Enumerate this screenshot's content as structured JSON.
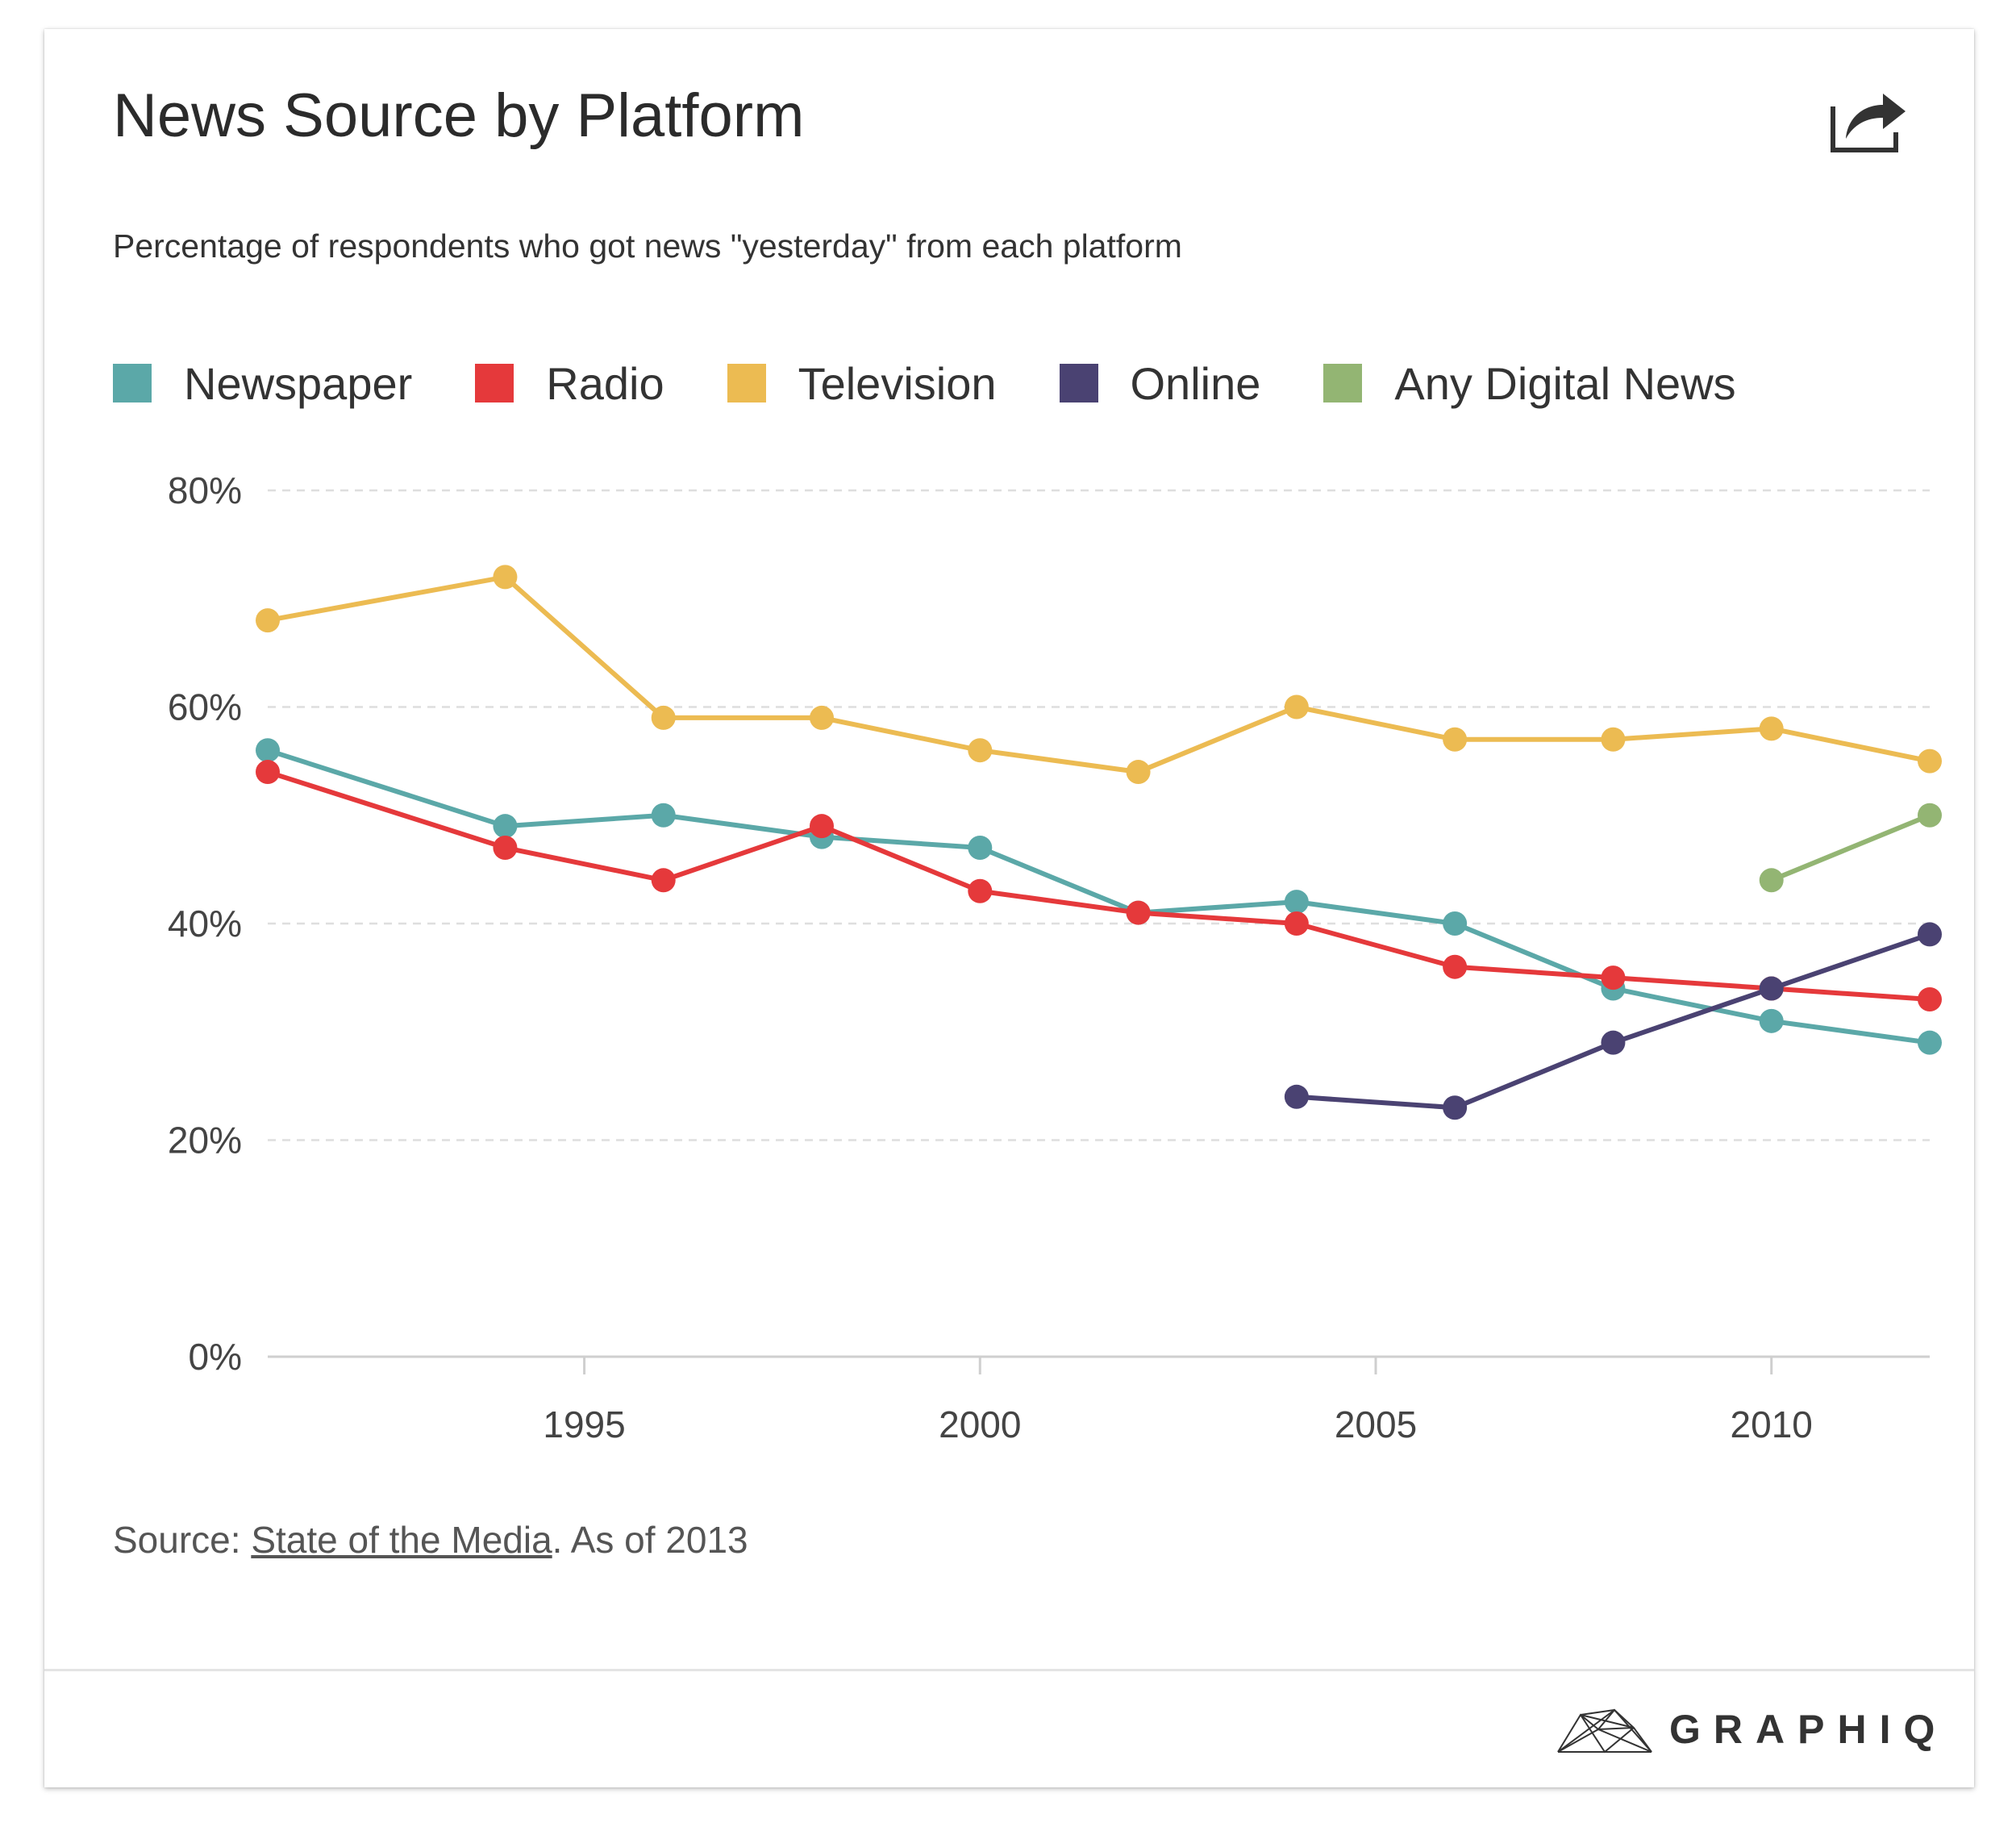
{
  "header": {
    "title": "News Source by Platform",
    "subtitle": "Percentage of respondents who got news \"yesterday\" from each platform"
  },
  "footer": {
    "source_prefix": "Source: ",
    "source_link": "State of the Media",
    "source_suffix": ". As of 2013",
    "brand": "GRAPHIQ"
  },
  "legend": [
    {
      "label": "Newspaper",
      "color": "#5ba8a8"
    },
    {
      "label": "Radio",
      "color": "#e5393b"
    },
    {
      "label": "Television",
      "color": "#ecbb52"
    },
    {
      "label": "Online",
      "color": "#4a4272"
    },
    {
      "label": "Any Digital News",
      "color": "#93b573"
    }
  ],
  "chart_data": {
    "type": "line",
    "title": "News Source by Platform",
    "subtitle": "Percentage of respondents who got news \"yesterday\" from each platform",
    "xlabel": "",
    "ylabel": "",
    "xlim": [
      1991,
      2012
    ],
    "ylim": [
      0,
      80
    ],
    "x_ticks": [
      1995,
      2000,
      2005,
      2010
    ],
    "y_ticks": [
      0,
      20,
      40,
      60,
      80
    ],
    "y_tick_labels": [
      "0%",
      "20%",
      "40%",
      "60%",
      "80%"
    ],
    "grid": true,
    "legend_position": "top",
    "series": [
      {
        "name": "Newspaper",
        "color": "#5ba8a8",
        "x": [
          1991,
          1994,
          1996,
          1998,
          2000,
          2002,
          2004,
          2006,
          2008,
          2010,
          2012
        ],
        "y": [
          56,
          49,
          50,
          48,
          47,
          41,
          42,
          40,
          34,
          31,
          29
        ]
      },
      {
        "name": "Radio",
        "color": "#e5393b",
        "x": [
          1991,
          1994,
          1996,
          1998,
          2000,
          2002,
          2004,
          2006,
          2008,
          2010,
          2012
        ],
        "y": [
          54,
          47,
          44,
          49,
          43,
          41,
          40,
          36,
          35,
          34,
          33
        ]
      },
      {
        "name": "Television",
        "color": "#ecbb52",
        "x": [
          1991,
          1994,
          1996,
          1998,
          2000,
          2002,
          2004,
          2006,
          2008,
          2010,
          2012
        ],
        "y": [
          68,
          72,
          59,
          59,
          56,
          54,
          60,
          57,
          57,
          58,
          55
        ]
      },
      {
        "name": "Online",
        "color": "#4a4272",
        "x": [
          2004,
          2006,
          2008,
          2010,
          2012
        ],
        "y": [
          24,
          23,
          29,
          34,
          39
        ]
      },
      {
        "name": "Any Digital News",
        "color": "#93b573",
        "x": [
          2010,
          2012
        ],
        "y": [
          44,
          50
        ]
      }
    ]
  }
}
